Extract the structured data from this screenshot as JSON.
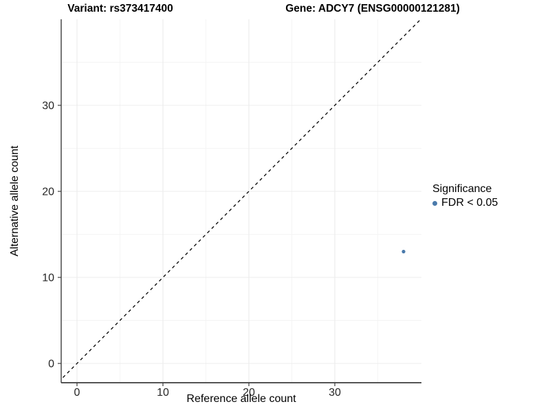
{
  "titles": {
    "variant": "Variant: rs373417400",
    "gene": "Gene: ADCY7 (ENSG00000121281)"
  },
  "axes": {
    "x_label": "Reference allele count",
    "y_label": "Alternative allele count"
  },
  "legend": {
    "title": "Significance",
    "items": [
      {
        "label": "FDR < 0.05",
        "color": "#4a7aab"
      }
    ]
  },
  "chart_data": {
    "type": "scatter",
    "title_left": "Variant: rs373417400",
    "title_right": "Gene: ADCY7 (ENSG00000121281)",
    "xlabel": "Reference allele count",
    "ylabel": "Alternative allele count",
    "points": [
      {
        "x": 38,
        "y": 13,
        "series": "FDR < 0.05",
        "color": "#4a7aab"
      }
    ],
    "identity_line": {
      "slope": 1,
      "intercept": 0,
      "style": "dashed",
      "color": "#000000"
    },
    "x_ticks": [
      0,
      10,
      20,
      30
    ],
    "y_ticks": [
      0,
      10,
      20,
      30
    ],
    "x_minor_ticks": [
      5,
      15,
      25,
      35
    ],
    "y_minor_ticks": [
      5,
      15,
      25,
      35
    ],
    "xlim": [
      -1.84,
      40.08
    ],
    "ylim": [
      -2.24,
      40.0
    ],
    "grid": true,
    "legend_position": "right",
    "colors": {
      "point": "#4a7aab",
      "major_grid": "#ececec",
      "minor_grid": "#f4f4f4",
      "axis_line": "#3c3c3c",
      "tick_text": "#262626"
    }
  }
}
